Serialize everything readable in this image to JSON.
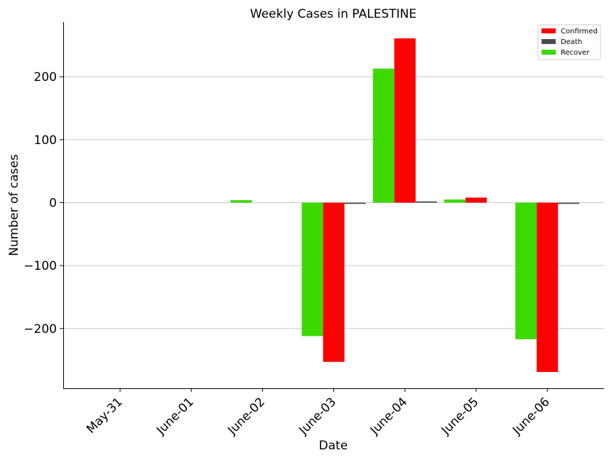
{
  "chart_data": {
    "type": "bar",
    "title": "Weekly Cases in PALESTINE",
    "xlabel": "Date",
    "ylabel": "Number of cases",
    "categories": [
      "May-31",
      "June-01",
      "June-02",
      "June-03",
      "June-04",
      "June-05",
      "June-06"
    ],
    "series": [
      {
        "name": "Recover",
        "color": "#3dd900",
        "values": [
          0,
          0,
          4,
          -212,
          213,
          5,
          -217
        ]
      },
      {
        "name": "Confirmed",
        "color": "#ff0000",
        "values": [
          0,
          0,
          0,
          -253,
          261,
          8,
          -269
        ]
      },
      {
        "name": "Death",
        "color": "#4d4d4d",
        "values": [
          0,
          0,
          0,
          -2,
          2,
          0,
          -2
        ]
      }
    ],
    "legend_order": [
      "Confirmed",
      "Death",
      "Recover"
    ],
    "ylim": [
      -295,
      287
    ],
    "yticks": [
      -200,
      -100,
      0,
      100,
      200
    ],
    "ytick_labels": [
      "−200",
      "−100",
      "0",
      "100",
      "200"
    ],
    "grid": "horizontal",
    "legend_position": "top-right"
  }
}
